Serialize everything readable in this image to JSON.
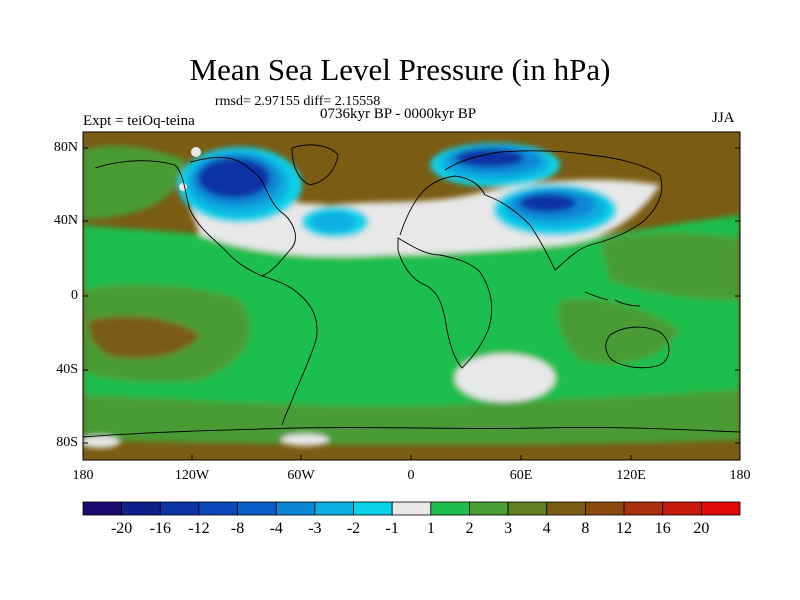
{
  "title": "Mean Sea Level Pressure (in hPa)",
  "stats": "rmsd= 2.97155  diff= 2.15558",
  "period": "0736kyr BP - 0000kyr BP",
  "experiment": "Expt = teiOq-teina",
  "season": "JJA",
  "lat_labels": [
    "80N",
    "40N",
    "0",
    "40S",
    "80S"
  ],
  "lon_labels": [
    "180",
    "120W",
    "60W",
    "0",
    "60E",
    "120E",
    "180"
  ],
  "colorbar": {
    "labels": [
      "-20",
      "-16",
      "-12",
      "-8",
      "-4",
      "-3",
      "-2",
      "-1",
      "1",
      "2",
      "3",
      "4",
      "8",
      "12",
      "16",
      "20"
    ],
    "colors": [
      "#1a0a6e",
      "#0f1f8c",
      "#0b33a5",
      "#0a47b8",
      "#0b5cc7",
      "#0a86d6",
      "#0aaee0",
      "#0ad2e8",
      "#e8e8e8",
      "#1ebe4e",
      "#4a9c34",
      "#5f7f20",
      "#7a5c12",
      "#8a4a0e",
      "#a8300c",
      "#c81a0a",
      "#e00a0a"
    ]
  },
  "palette": {
    "white": "#e8e8e8",
    "green": "#1ebe4e",
    "midgreen": "#4a9c34",
    "olive": "#5f7f20",
    "brown": "#7a5c12",
    "cyan": "#0ad2e8",
    "lightblue": "#0aaee0",
    "blue": "#0a86d6",
    "darkblue": "#0b33a5"
  }
}
